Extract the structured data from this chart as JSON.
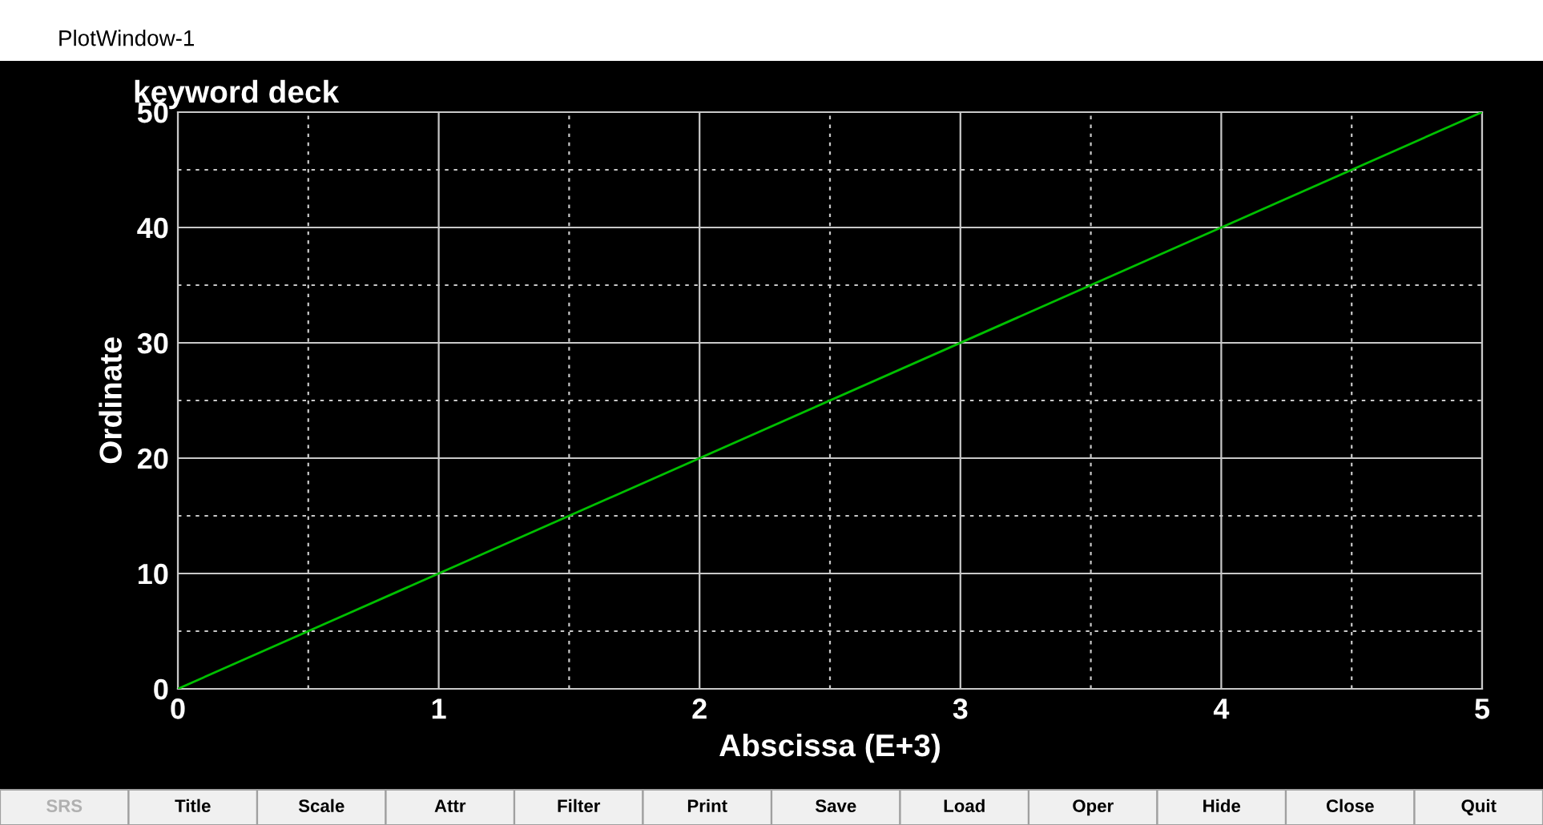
{
  "chart_data": {
    "type": "line",
    "title": "keyword deck",
    "xlabel": "Abscissa (E+3)",
    "ylabel": "Ordinate",
    "x": [
      0,
      5
    ],
    "series": [
      {
        "color": "#00c000",
        "values": [
          0,
          50
        ]
      }
    ],
    "xlim": [
      0,
      5
    ],
    "ylim": [
      0,
      50
    ],
    "xticks": [
      0,
      {
        "value": 0.5,
        "label": null
      },
      1,
      {
        "value": 1.5,
        "label": null
      },
      2,
      {
        "value": 2.5,
        "label": null
      },
      3,
      {
        "value": 3.5,
        "label": null
      },
      4,
      {
        "value": 4.5,
        "label": null
      },
      5
    ],
    "yticks": [
      0,
      {
        "value": 5,
        "label": null
      },
      10,
      {
        "value": 15,
        "label": null
      },
      20,
      {
        "value": 25,
        "label": null
      },
      30,
      {
        "value": 35,
        "label": null
      },
      40,
      {
        "value": 45,
        "label": null
      },
      50
    ],
    "grid": true,
    "marker": "none",
    "line_style": "solid",
    "annotations": [
      "PlotWindow-1",
      "SRS",
      "Title",
      "Scale",
      "Attr",
      "Filter",
      "Print",
      "Save",
      "Load",
      "Oper",
      "Hide",
      "Close",
      "Quit"
    ]
  }
}
